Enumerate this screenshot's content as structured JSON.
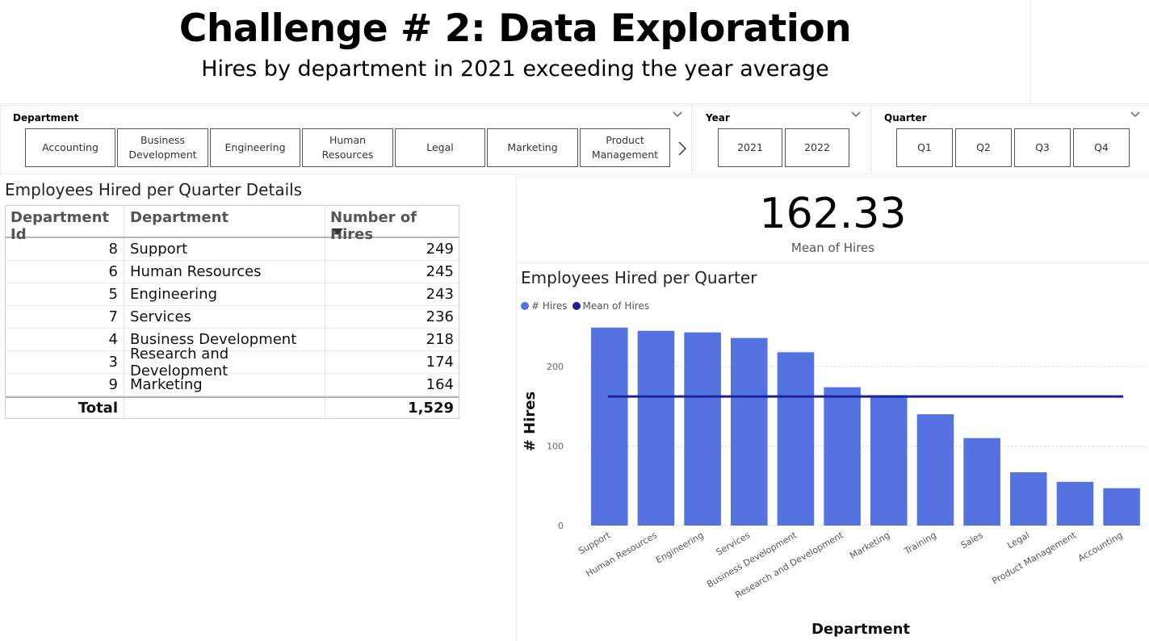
{
  "header": {
    "title": "Challenge # 2: Data Exploration",
    "subtitle": "Hires by department in 2021 exceeding the year average"
  },
  "slicers": {
    "department": {
      "label": "Department",
      "options": [
        "Accounting",
        "Business Development",
        "Engineering",
        "Human Resources",
        "Legal",
        "Marketing",
        "Product Management"
      ]
    },
    "year": {
      "label": "Year",
      "options": [
        "2021",
        "2022"
      ]
    },
    "quarter": {
      "label": "Quarter",
      "options": [
        "Q1",
        "Q2",
        "Q3",
        "Q4"
      ]
    }
  },
  "table": {
    "title": "Employees Hired per Quarter Details",
    "columns": [
      "Department Id",
      "Department",
      "Number of Hires"
    ],
    "sorted_column": "Number of Hires",
    "sort_direction": "descending",
    "rows": [
      {
        "id": "8",
        "department": "Support",
        "hires": "249"
      },
      {
        "id": "6",
        "department": "Human Resources",
        "hires": "245"
      },
      {
        "id": "5",
        "department": "Engineering",
        "hires": "243"
      },
      {
        "id": "7",
        "department": "Services",
        "hires": "236"
      },
      {
        "id": "4",
        "department": "Business Development",
        "hires": "218"
      },
      {
        "id": "3",
        "department": "Research and Development",
        "hires": "174"
      },
      {
        "id": "9",
        "department": "Marketing",
        "hires": "164"
      }
    ],
    "total_label": "Total",
    "total_value": "1,529"
  },
  "card": {
    "value": "162.33",
    "label": "Mean of Hires"
  },
  "colors": {
    "bar": "#5472e0",
    "mean_line": "#1a2396",
    "border": "#ededed"
  },
  "chart_data": {
    "type": "bar",
    "title": "Employees Hired per Quarter",
    "xlabel": "Department",
    "ylabel": "# Hires",
    "categories": [
      "Support",
      "Human Resources",
      "Engineering",
      "Services",
      "Business Development",
      "Research and Development",
      "Marketing",
      "Training",
      "Sales",
      "Legal",
      "Product Management",
      "Accounting"
    ],
    "series": [
      {
        "name": "# Hires",
        "type": "bar",
        "values": [
          249,
          245,
          243,
          236,
          218,
          174,
          164,
          140,
          110,
          67,
          55,
          47
        ]
      },
      {
        "name": "Mean of Hires",
        "type": "line",
        "values": [
          162.33,
          162.33,
          162.33,
          162.33,
          162.33,
          162.33,
          162.33,
          162.33,
          162.33,
          162.33,
          162.33,
          162.33
        ]
      }
    ],
    "yticks": [
      0,
      100,
      200
    ],
    "ylim": [
      0,
      250
    ],
    "grid": "horizontal dotted",
    "legend_position": "top-left"
  }
}
